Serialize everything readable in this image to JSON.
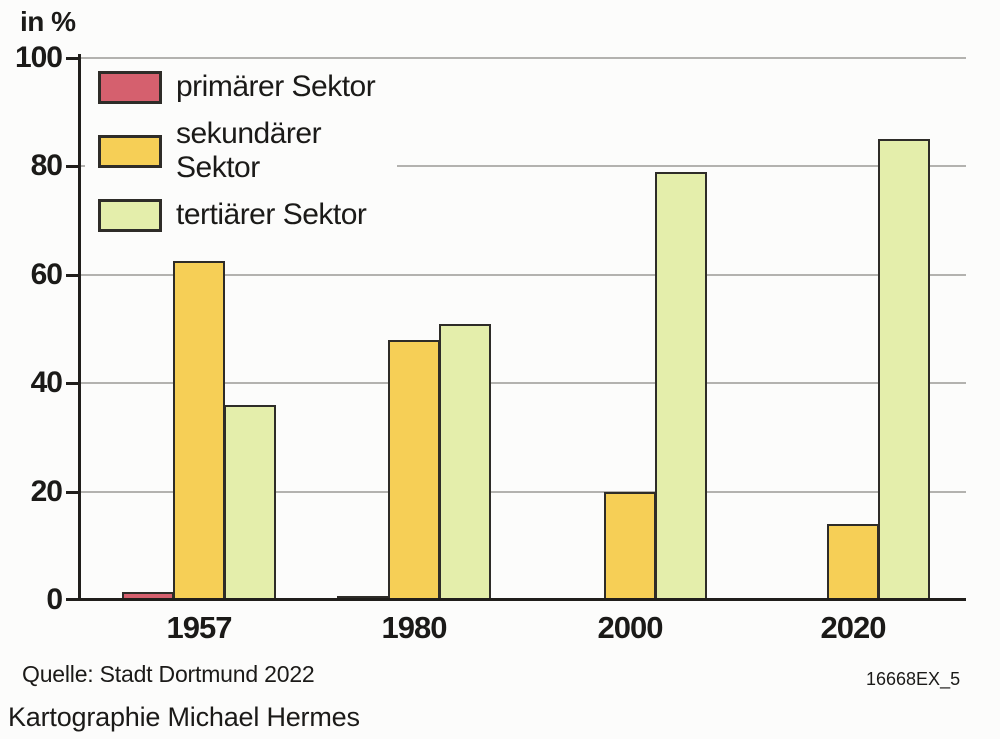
{
  "chart_data": {
    "type": "bar",
    "title": "",
    "categories": [
      "1957",
      "1980",
      "2000",
      "2020"
    ],
    "series": [
      {
        "name": "primärer Sektor",
        "color": "#d5606e",
        "values": [
          1.5,
          0.8,
          0.4,
          0.3
        ]
      },
      {
        "name": "sekundärer Sektor",
        "color": "#f6cf56",
        "values": [
          62.5,
          48,
          20,
          14
        ]
      },
      {
        "name": "tertiärer Sektor",
        "color": "#e4eeab",
        "values": [
          36,
          51,
          79,
          85
        ]
      }
    ],
    "xlabel": "",
    "ylabel": "in %",
    "ylim": [
      0,
      100
    ],
    "yticks": [
      0,
      20,
      40,
      60,
      80,
      100
    ],
    "grid": true,
    "legend_position": "top-left"
  },
  "colors": {
    "background": "#fcfcfb",
    "axis": "#201e1b",
    "grid": "#b3b2af",
    "text": "#1b1a18",
    "bar_border": "#2e2c28"
  },
  "footer": {
    "source": "Quelle: Stadt Dortmund 2022",
    "figure_id": "16668EX_5",
    "credit": "Kartographie Michael Hermes"
  }
}
